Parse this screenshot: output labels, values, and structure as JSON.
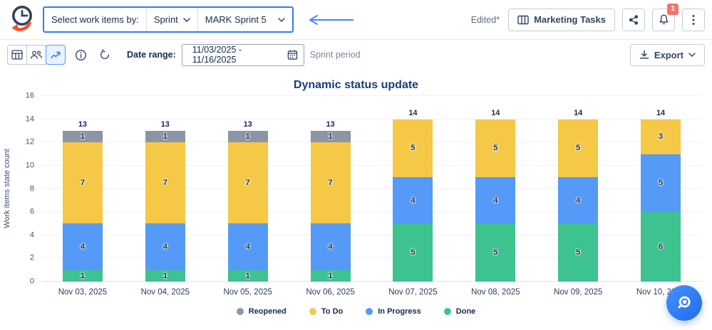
{
  "header": {
    "selector": {
      "label": "Select work items by:",
      "type_value": "Sprint",
      "item_value": "MARK Sprint 5"
    },
    "edited": "Edited*",
    "board_button": "Marketing Tasks",
    "notifications_badge": "1"
  },
  "toolbar": {
    "date_range_label": "Date range:",
    "date_range_value": "11/03/2025 - 11/16/2025",
    "date_range_hint": "Sprint period",
    "export_label": "Export"
  },
  "chart_data": {
    "type": "bar",
    "stacked": true,
    "title": "Dynamic status update",
    "xlabel": "",
    "ylabel": "Work items state count",
    "ylim": [
      0,
      16
    ],
    "ytick_step": 2,
    "grid": "horizontal",
    "legend_position": "bottom",
    "categories": [
      "Nov 03, 2025",
      "Nov 04, 2025",
      "Nov 05, 2025",
      "Nov 06, 2025",
      "Nov 07, 2025",
      "Nov 08, 2025",
      "Nov 09, 2025",
      "Nov 10, 2025"
    ],
    "series": [
      {
        "name": "Reopened",
        "color": "#8C95A6",
        "values": [
          1,
          1,
          1,
          1,
          0,
          0,
          0,
          0
        ]
      },
      {
        "name": "To Do",
        "color": "#F5C848",
        "values": [
          7,
          7,
          7,
          7,
          5,
          5,
          5,
          3
        ]
      },
      {
        "name": "In Progress",
        "color": "#559AF6",
        "values": [
          4,
          4,
          4,
          4,
          4,
          4,
          4,
          5
        ]
      },
      {
        "name": "Done",
        "color": "#3EC28F",
        "values": [
          1,
          1,
          1,
          1,
          5,
          5,
          5,
          6
        ]
      }
    ],
    "stack_order_top_to_bottom": [
      "Reopened",
      "To Do",
      "In Progress",
      "Done"
    ],
    "totals": [
      13,
      13,
      13,
      13,
      14,
      14,
      14,
      14
    ]
  },
  "icons": {
    "logo": "clock-with-orange-arrow",
    "board": "board-grid",
    "share": "share-nodes",
    "notifications": "bell",
    "more": "kebab-dots",
    "view_table": "table-grid",
    "view_people": "people",
    "view_chart": "trend-line",
    "info": "info-circle",
    "refresh": "rotate-ccw",
    "calendar": "calendar",
    "export": "download",
    "fab": "search-lens",
    "annotation": "left-arrow"
  },
  "colors": {
    "accent_blue": "#2E7CF6",
    "active_toggle_bg": "#E9F2FF",
    "badge_red": "#F87168",
    "title_navy": "#1C3C78",
    "text_navy": "#172B4D",
    "muted_gray": "#7A869A",
    "grid_line": "#EFF1F4",
    "fab_blue": "#2E77F2",
    "logo_orange": "#F0512C"
  }
}
